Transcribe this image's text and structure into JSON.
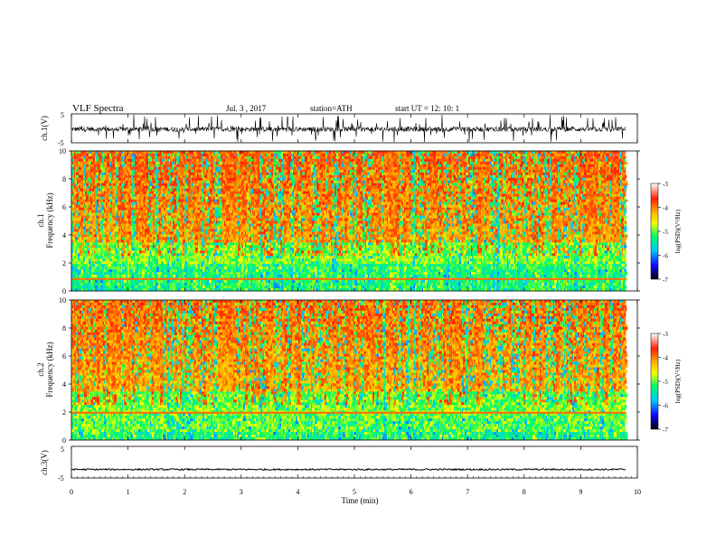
{
  "header": {
    "title": "VLF Spectra",
    "date": "Jul.  3  , 2017",
    "station": "station=ATH",
    "start_ut": "start  UT  =    12: 10: 1"
  },
  "colors": {
    "spectrum_stops": [
      "#000000",
      "#1000ff",
      "#00c8ff",
      "#00ff60",
      "#f0ff00",
      "#ffb000",
      "#ff2000",
      "#ffffff"
    ],
    "trace": "#000000"
  },
  "chart_data": [
    {
      "type": "line",
      "name": "ch1-waveform",
      "ylabel": "ch.1(V)",
      "ylim": [
        -5,
        5
      ],
      "yticks": [
        "5",
        "-5"
      ],
      "xlim": [
        0,
        10
      ]
    },
    {
      "type": "heatmap",
      "name": "ch1-spectrogram",
      "ylabel": "Frequency (kHz)",
      "channel_label": "ch.1",
      "ylim": [
        0,
        10
      ],
      "yticks": [
        "0",
        "2",
        "4",
        "6",
        "8",
        "10"
      ],
      "xlim": [
        0,
        10
      ],
      "data_end_min": 9.8,
      "colorbar": {
        "label": "log(PSD)(V²/Hz)",
        "range": [
          -7,
          -3
        ],
        "ticks": [
          "-3",
          "-4",
          "-5",
          "-6",
          "-7"
        ]
      }
    },
    {
      "type": "heatmap",
      "name": "ch2-spectrogram",
      "ylabel": "Frequency (kHz)",
      "channel_label": "ch.2",
      "ylim": [
        0,
        10
      ],
      "yticks": [
        "0",
        "2",
        "4",
        "6",
        "8",
        "10"
      ],
      "xlim": [
        0,
        10
      ],
      "data_end_min": 9.8,
      "colorbar": {
        "label": "log(PSD)(V²/Hz)",
        "range": [
          -7,
          -3
        ],
        "ticks": [
          "-3",
          "-4",
          "-5",
          "-6",
          "-7"
        ]
      }
    },
    {
      "type": "line",
      "name": "ch3-waveform",
      "ylabel": "ch.3(V)",
      "ylim": [
        -5,
        5
      ],
      "yticks": [
        "5",
        "-5"
      ],
      "xlim": [
        0,
        10
      ],
      "xlabel": "Time  (min)",
      "xticks": [
        "0",
        "1",
        "2",
        "3",
        "4",
        "5",
        "6",
        "7",
        "8",
        "9",
        "10"
      ]
    }
  ]
}
